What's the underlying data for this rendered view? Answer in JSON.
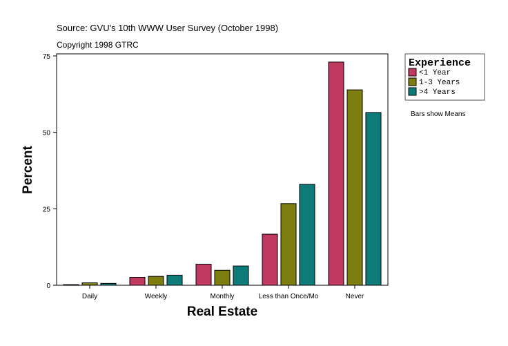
{
  "chart_data": {
    "type": "bar",
    "title": "Source: GVU's 10th WWW User Survey (October 1998)",
    "subtitle": "Copyright 1998 GTRC",
    "xlabel": "Real Estate",
    "ylabel": "Percent",
    "ylim": [
      0,
      75
    ],
    "yticks": [
      0,
      25,
      50,
      75
    ],
    "categories": [
      "Daily",
      "Weekly",
      "Monthly",
      "Less than Once/Mo",
      "Never"
    ],
    "series": [
      {
        "name": "<1 Year",
        "color": "#C0395F",
        "values": [
          0.2,
          2.6,
          6.9,
          16.7,
          73.0
        ]
      },
      {
        "name": "1-3 Years",
        "color": "#7E7E10",
        "values": [
          0.8,
          2.9,
          4.9,
          26.7,
          63.9
        ]
      },
      {
        "name": ">4 Years",
        "color": "#0E7B7B",
        "values": [
          0.6,
          3.3,
          6.3,
          33.0,
          56.5
        ]
      }
    ],
    "legend": {
      "title": "Experience",
      "placement": "right"
    },
    "note": "Bars show Means",
    "grid": false
  }
}
